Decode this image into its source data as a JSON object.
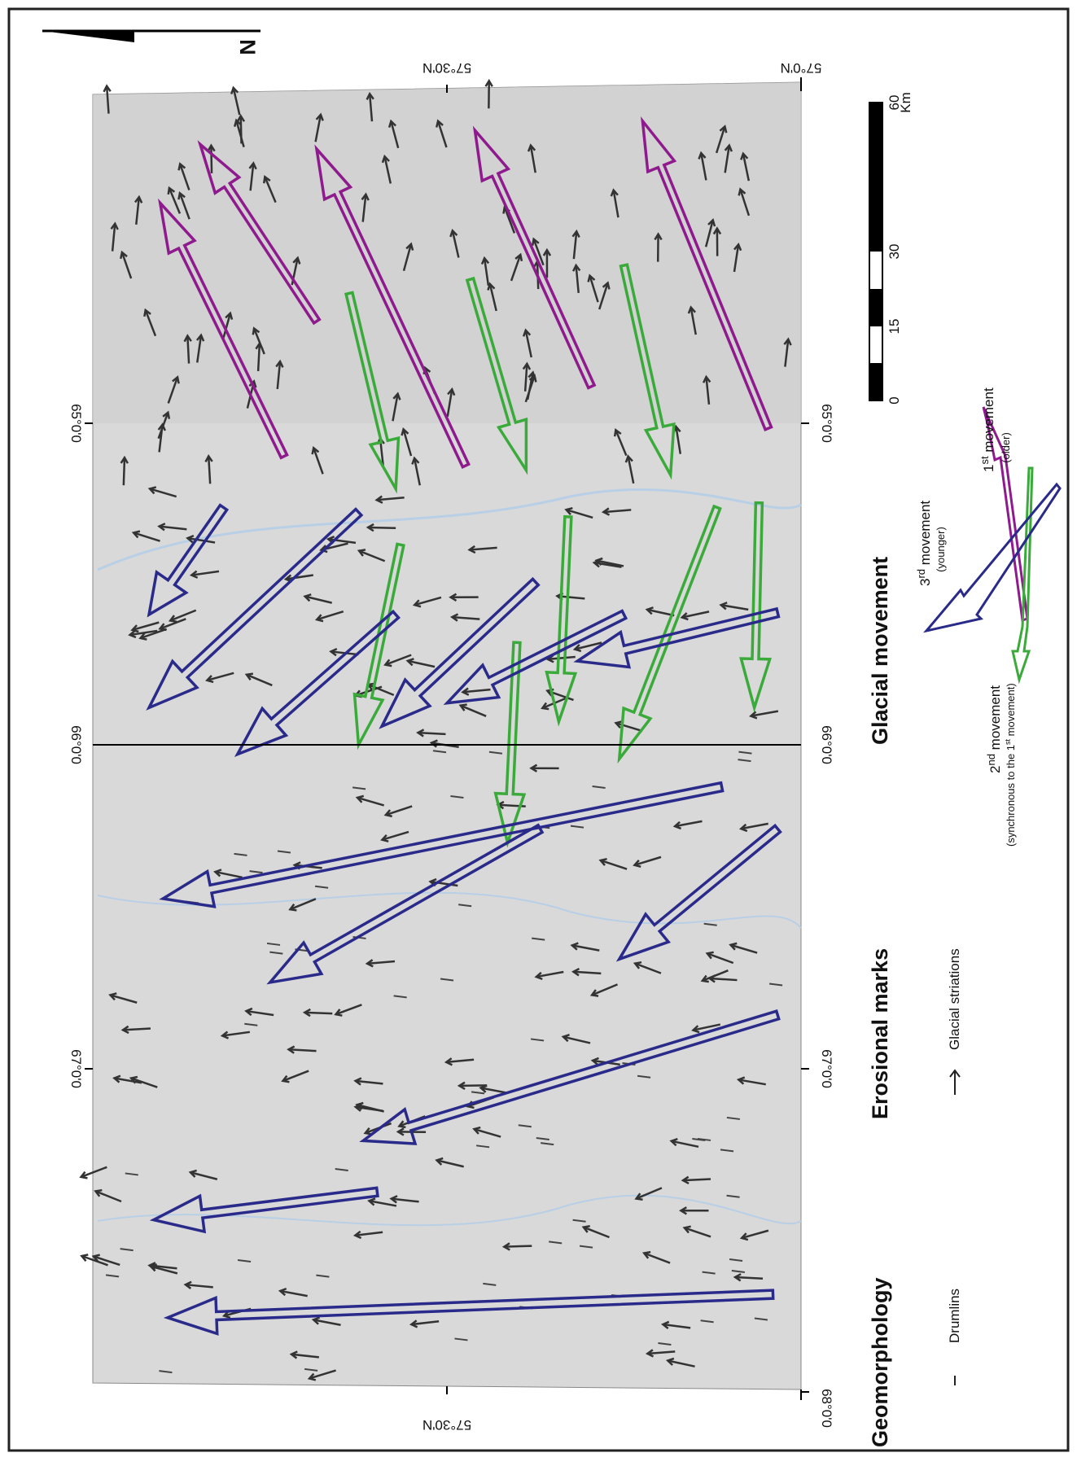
{
  "map": {
    "north": "N",
    "top_labels": [
      "57°30'N",
      "57°0'N"
    ],
    "bottom_label": "57°30'N",
    "left_labels": [
      "65°0'0",
      "66°0'0",
      "67°0'0"
    ],
    "right_labels": [
      "65°0'0",
      "66°0'0",
      "67°0'0",
      "68°0'0"
    ]
  },
  "scale_bar": {
    "unit": "Km",
    "ticks": [
      "0",
      "15",
      "30",
      "60"
    ]
  },
  "legend": {
    "glacial_movement": {
      "title": "Glacial movement",
      "first": {
        "number": "1",
        "suffix": "st",
        "text": " movement",
        "note": "(older)"
      },
      "third": {
        "number": "3",
        "suffix": "rd",
        "text": " movement",
        "note": "(younger)"
      },
      "second": {
        "number": "2",
        "suffix": "nd",
        "text": " movement",
        "note_start": "(synchronous to the 1",
        "note_suffix": "st",
        "note_end": " movement)"
      }
    },
    "erosional_marks": {
      "title": "Erosional marks",
      "item": "Glacial striations"
    },
    "geomorphology": {
      "title": "Geomorphology",
      "item": "Drumlins"
    }
  }
}
